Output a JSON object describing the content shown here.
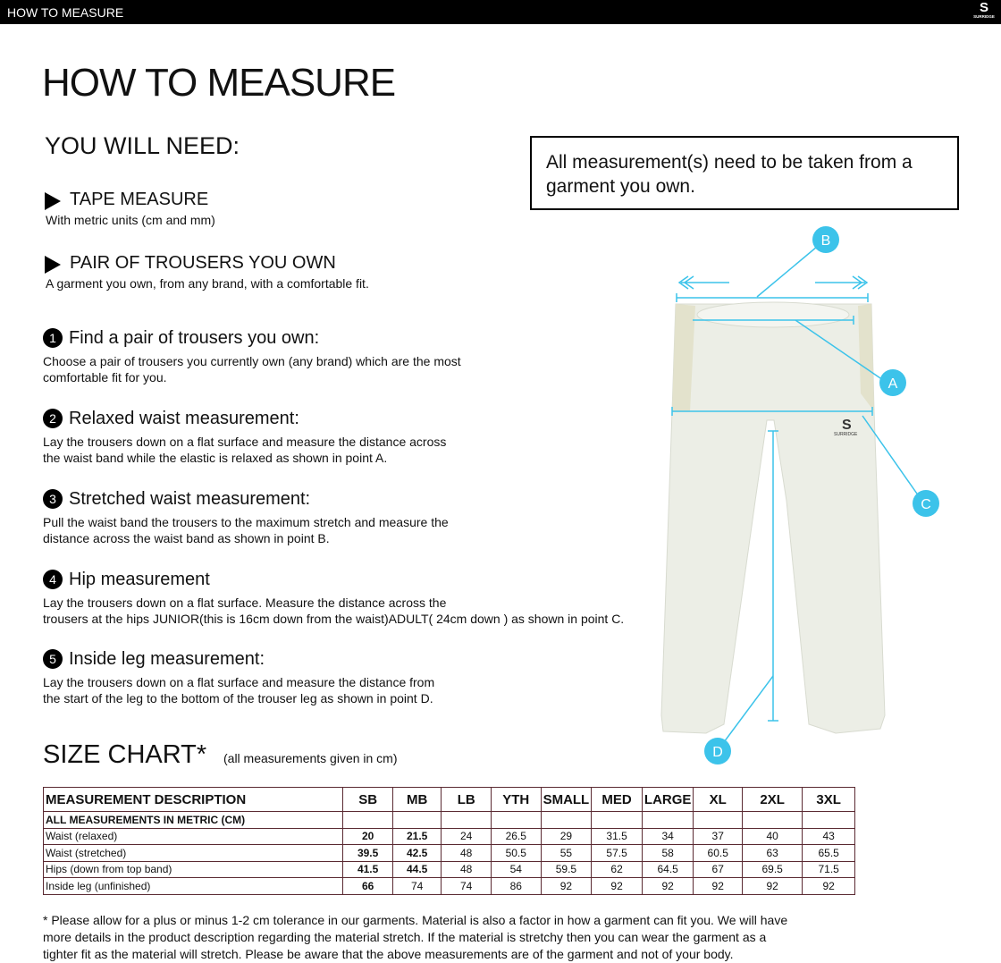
{
  "header": {
    "title": "HOW TO MEASURE",
    "logo_text": "SURRIDGE"
  },
  "page_title": "HOW TO MEASURE",
  "you_will_need": {
    "heading": "YOU WILL NEED:",
    "items": [
      {
        "title": "TAPE MEASURE",
        "desc": "With metric units (cm and mm)"
      },
      {
        "title": "PAIR OF TROUSERS YOU OWN",
        "desc": "A garment you own, from any brand, with a comfortable fit."
      }
    ]
  },
  "notice": "All measurement(s) need to be taken from a garment you own.",
  "steps": [
    {
      "n": "1",
      "title": "Find a pair of trousers you own:",
      "l1": "Choose a pair of trousers you currently own (any brand) which are the most",
      "l2": "comfortable fit for you."
    },
    {
      "n": "2",
      "title": "Relaxed waist measurement:",
      "l1": "Lay the trousers down on a flat surface and measure the distance across",
      "l2": "the waist band while the elastic is relaxed as shown in point A."
    },
    {
      "n": "3",
      "title": "Stretched waist measurement:",
      "l1": "Pull the waist band the trousers to the maximum stretch and measure the",
      "l2": "distance across the waist band as shown in point B."
    },
    {
      "n": "4",
      "title": "Hip measurement",
      "l1": "Lay the trousers down on a flat surface. Measure the distance across the",
      "l2": "trousers at the hips JUNIOR(this is 16cm down from the waist)ADULT( 24cm down ) as shown in point C."
    },
    {
      "n": "5",
      "title": "Inside leg measurement:",
      "l1": "Lay the trousers down on a flat surface and measure the distance from",
      "l2": "the start of the leg to the bottom of the trouser leg as shown in point D."
    }
  ],
  "diagram": {
    "labels": [
      "A",
      "B",
      "C",
      "D"
    ],
    "accent": "#3cc3ea"
  },
  "size_chart": {
    "title": "SIZE CHART*",
    "note": "(all measurements given in cm)",
    "header": [
      "MEASUREMENT DESCRIPTION",
      "SB",
      "MB",
      "LB",
      "YTH",
      "SMALL",
      "MED",
      "LARGE",
      "XL",
      "2XL",
      "3XL"
    ],
    "subheader": "ALL MEASUREMENTS IN METRIC (CM)",
    "rows": [
      [
        "Waist (relaxed)",
        "20",
        "21.5",
        "24",
        "26.5",
        "29",
        "31.5",
        "34",
        "37",
        "40",
        "43"
      ],
      [
        "Waist (stretched)",
        "39.5",
        "42.5",
        "48",
        "50.5",
        "55",
        "57.5",
        "58",
        "60.5",
        "63",
        "65.5"
      ],
      [
        "Hips (down from top band)",
        "41.5",
        "44.5",
        "48",
        "54",
        "59.5",
        "62",
        "64.5",
        "67",
        "69.5",
        "71.5"
      ],
      [
        "Inside leg (unfinished)",
        "66",
        "74",
        "74",
        "86",
        "92",
        "92",
        "92",
        "92",
        "92",
        "92"
      ]
    ]
  },
  "footnote": "* Please allow for a plus or minus 1-2 cm tolerance in our garments. Material is also a factor in how a garment can fit you. We will have more details in the product description regarding the material stretch.  If the material is stretchy then you can wear the garment as a tighter fit as the material will stretch.  Please be aware that the above measurements are of the garment and not of your body."
}
